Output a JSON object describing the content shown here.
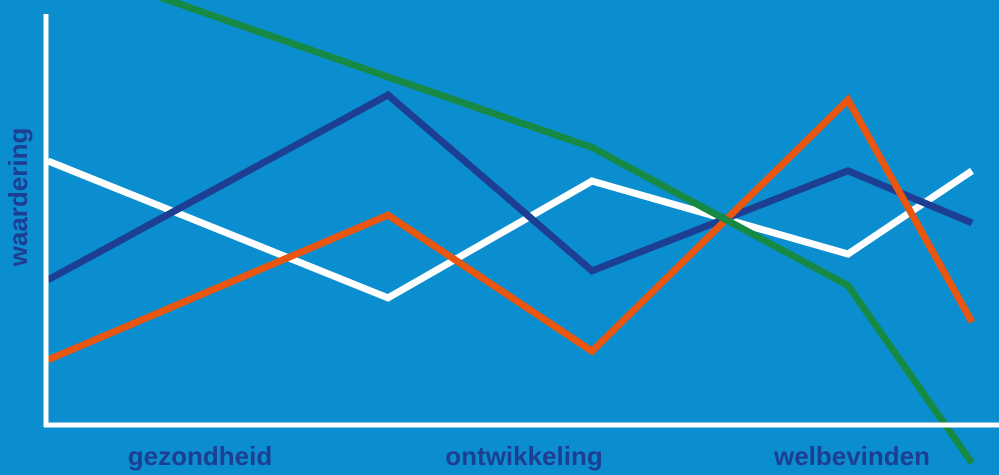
{
  "chart_data": {
    "type": "line",
    "y_label": "waardering",
    "x_labels": [
      "gezondheid",
      "ontwikkeling",
      "welbevinden"
    ],
    "categories": [
      null,
      null,
      null,
      null,
      null
    ],
    "ylim": [
      0,
      100
    ],
    "series": [
      {
        "color": "#ffffff",
        "values": [
          64.4,
          31,
          59.5,
          41.7,
          62
        ]
      },
      {
        "color": "#1d3f93",
        "values": [
          35.4,
          80.5,
          37.6,
          62,
          49.3
        ]
      },
      {
        "color": "#e8560f",
        "values": [
          15.9,
          51.2,
          18,
          79.3,
          25.1
        ]
      },
      {
        "color": "#168a45",
        "values": [
          113.9,
          84.9,
          67.7,
          34,
          -9.3
        ]
      }
    ]
  }
}
